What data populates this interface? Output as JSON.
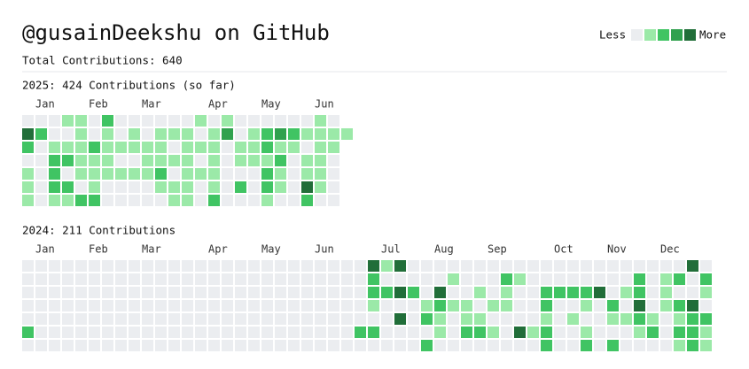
{
  "header": {
    "title": "@gusainDeekshu on GitHub",
    "total": "Total Contributions: 640"
  },
  "legend": {
    "less": "Less",
    "more": "More",
    "levels": [
      0,
      1,
      2,
      3,
      4
    ]
  },
  "colors": [
    "#ebedf0",
    "#9be9a8",
    "#40c463",
    "#30a14e",
    "#216e39"
  ],
  "years": [
    {
      "title": "2025: 424 Contributions (so far)",
      "months": [
        "Jan",
        "Feb",
        "Mar",
        "Apr",
        "May",
        "Jun"
      ],
      "cells": [
        [
          0,
          0,
          0,
          1,
          1,
          0,
          2,
          0,
          0,
          0,
          0,
          0,
          0,
          1,
          0,
          1,
          0,
          0,
          0,
          0,
          0,
          0,
          1,
          0,
          null
        ],
        [
          4,
          2,
          0,
          0,
          1,
          0,
          1,
          0,
          1,
          0,
          1,
          1,
          1,
          0,
          1,
          3,
          0,
          1,
          2,
          3,
          2,
          1,
          1,
          1,
          1
        ],
        [
          2,
          0,
          1,
          1,
          1,
          2,
          1,
          1,
          1,
          1,
          1,
          0,
          1,
          1,
          1,
          0,
          1,
          1,
          2,
          1,
          1,
          0,
          1,
          1,
          null
        ],
        [
          0,
          0,
          2,
          2,
          1,
          1,
          1,
          0,
          0,
          1,
          1,
          1,
          1,
          0,
          1,
          0,
          1,
          1,
          1,
          2,
          0,
          1,
          1,
          0,
          null
        ],
        [
          1,
          0,
          2,
          0,
          1,
          1,
          1,
          1,
          1,
          1,
          2,
          0,
          1,
          1,
          1,
          0,
          0,
          0,
          2,
          1,
          0,
          1,
          1,
          0,
          null
        ],
        [
          1,
          0,
          2,
          2,
          0,
          1,
          0,
          0,
          0,
          0,
          1,
          1,
          1,
          0,
          1,
          0,
          2,
          0,
          2,
          1,
          0,
          4,
          1,
          0,
          null
        ],
        [
          1,
          0,
          1,
          1,
          2,
          2,
          0,
          0,
          0,
          0,
          0,
          1,
          1,
          0,
          2,
          0,
          0,
          0,
          1,
          0,
          0,
          2,
          0,
          0,
          null
        ]
      ]
    },
    {
      "title": "2024: 211 Contributions",
      "months": [
        "Jan",
        "Feb",
        "Mar",
        "Apr",
        "May",
        "Jun",
        "Jul",
        "Aug",
        "Sep",
        "Oct",
        "Nov",
        "Dec"
      ],
      "cells": [
        [
          0,
          0,
          0,
          0,
          0,
          0,
          0,
          0,
          0,
          0,
          0,
          0,
          0,
          0,
          0,
          0,
          0,
          0,
          0,
          0,
          0,
          0,
          0,
          0,
          0,
          0,
          4,
          1,
          4,
          0,
          0,
          0,
          0,
          0,
          0,
          0,
          0,
          0,
          0,
          0,
          0,
          0,
          0,
          0,
          0,
          0,
          0,
          0,
          0,
          0,
          4,
          0
        ],
        [
          0,
          0,
          0,
          0,
          0,
          0,
          0,
          0,
          0,
          0,
          0,
          0,
          0,
          0,
          0,
          0,
          0,
          0,
          0,
          0,
          0,
          0,
          0,
          0,
          0,
          0,
          2,
          0,
          0,
          0,
          0,
          0,
          1,
          0,
          0,
          0,
          2,
          1,
          0,
          0,
          0,
          0,
          0,
          0,
          0,
          0,
          2,
          0,
          1,
          2,
          0,
          2
        ],
        [
          0,
          0,
          0,
          0,
          0,
          0,
          0,
          0,
          0,
          0,
          0,
          0,
          0,
          0,
          0,
          0,
          0,
          0,
          0,
          0,
          0,
          0,
          0,
          0,
          0,
          0,
          2,
          2,
          4,
          2,
          0,
          4,
          0,
          0,
          1,
          0,
          1,
          0,
          0,
          2,
          2,
          2,
          2,
          4,
          0,
          1,
          2,
          0,
          1,
          0,
          0,
          1
        ],
        [
          0,
          0,
          0,
          0,
          0,
          0,
          0,
          0,
          0,
          0,
          0,
          0,
          0,
          0,
          0,
          0,
          0,
          0,
          0,
          0,
          0,
          0,
          0,
          0,
          0,
          0,
          1,
          0,
          0,
          0,
          1,
          2,
          1,
          1,
          0,
          1,
          1,
          0,
          0,
          2,
          0,
          0,
          1,
          0,
          2,
          0,
          4,
          0,
          1,
          2,
          4,
          0
        ],
        [
          0,
          0,
          0,
          0,
          0,
          0,
          0,
          0,
          0,
          0,
          0,
          0,
          0,
          0,
          0,
          0,
          0,
          0,
          0,
          0,
          0,
          0,
          0,
          0,
          0,
          0,
          0,
          0,
          4,
          0,
          2,
          1,
          0,
          1,
          1,
          0,
          0,
          0,
          0,
          1,
          0,
          1,
          0,
          0,
          1,
          1,
          2,
          1,
          0,
          1,
          2,
          2
        ],
        [
          2,
          0,
          0,
          0,
          0,
          0,
          0,
          0,
          0,
          0,
          0,
          0,
          0,
          0,
          0,
          0,
          0,
          0,
          0,
          0,
          0,
          0,
          0,
          0,
          0,
          2,
          2,
          0,
          0,
          0,
          0,
          1,
          0,
          2,
          2,
          1,
          0,
          4,
          1,
          2,
          0,
          0,
          1,
          0,
          0,
          0,
          1,
          2,
          0,
          2,
          2,
          1
        ],
        [
          0,
          0,
          0,
          0,
          0,
          0,
          0,
          0,
          0,
          0,
          0,
          0,
          0,
          0,
          0,
          0,
          0,
          0,
          0,
          0,
          0,
          0,
          0,
          0,
          0,
          0,
          0,
          0,
          0,
          0,
          2,
          0,
          0,
          0,
          0,
          0,
          0,
          0,
          0,
          2,
          0,
          0,
          2,
          0,
          2,
          0,
          0,
          0,
          0,
          1,
          2,
          1
        ]
      ]
    }
  ]
}
